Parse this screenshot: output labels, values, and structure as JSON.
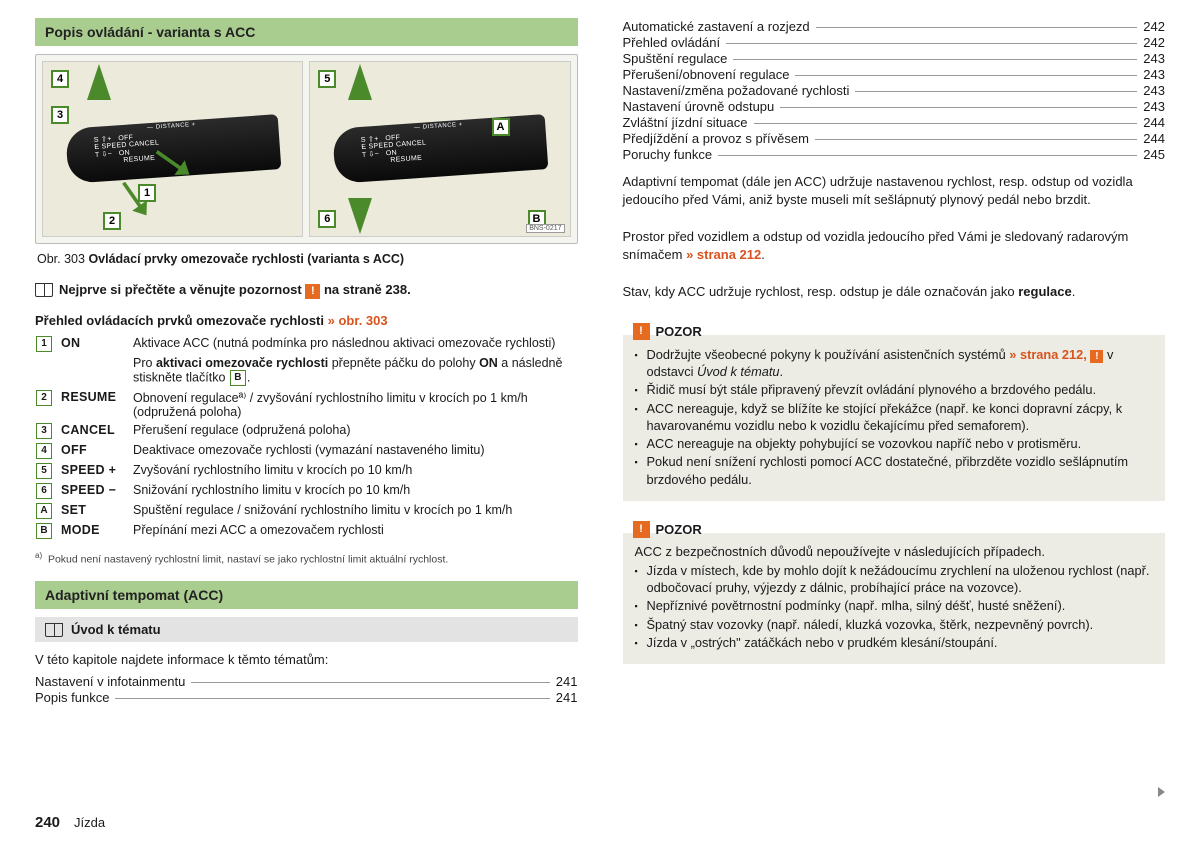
{
  "left": {
    "section_title": "Popis ovládání - varianta s ACC",
    "figure": {
      "lever_distance": "— DISTANCE +",
      "lever_lines_1": "S ⇧⇧+  OFF\nE SPEED CANCEL\nT ⇩⇩−  ON\n       RESUME",
      "code": "BNS-0217",
      "left_refs": {
        "r1": "1",
        "r2": "2",
        "r3": "3",
        "r4": "4"
      },
      "right_refs": {
        "r5": "5",
        "r6": "6",
        "rA": "A",
        "rB": "B"
      }
    },
    "caption_prefix": "Obr. 303 ",
    "caption_text": "Ovládací prvky omezovače rychlosti (varianta s ACC)",
    "read_first_a": "Nejprve si přečtěte a věnujte pozornost ",
    "read_first_b": " na straně 238.",
    "overview_heading": "Přehled ovládacích prvků omezovače rychlosti ",
    "overview_ref": "» obr. 303",
    "controls": [
      {
        "n": "1",
        "lbl": "ON",
        "txt": "Aktivace ACC (nutná podmínka pro následnou aktivaci omezovače rychlosti)"
      },
      {
        "n": "",
        "lbl": "",
        "txt_html": "Pro <b>aktivaci omezovače rychlosti</b> přepněte páčku do polohy <b>ON</b> a následně stiskněte tlačítko "
      },
      {
        "n": "2",
        "lbl": "RESUME",
        "txt": "Obnovení regulaceª⁾ / zvyšování rychlostního limitu v krocích po 1 km/h (odpružená poloha)"
      },
      {
        "n": "3",
        "lbl": "CANCEL",
        "txt": "Přerušení regulace (odpružená poloha)"
      },
      {
        "n": "4",
        "lbl": "OFF",
        "txt": "Deaktivace omezovače rychlosti (vymazání nastaveného limitu)"
      },
      {
        "n": "5",
        "lbl": "SPEED +",
        "txt": "Zvyšování rychlostního limitu v krocích po 10 km/h"
      },
      {
        "n": "6",
        "lbl": "SPEED −",
        "txt": "Snižování rychlostního limitu v krocích po 10 km/h"
      },
      {
        "n": "A",
        "lbl": "SET",
        "txt": "Spuštění regulace / snižování rychlostního limitu v krocích po 1 km/h"
      },
      {
        "n": "B",
        "lbl": "MODE",
        "txt": "Přepínání mezi ACC a omezovačem rychlosti"
      }
    ],
    "btn_B": "B",
    "footnote_marker": "a)",
    "footnote": "Pokud není nastavený rychlostní limit, nastaví se jako rychlostní limit aktuální rychlost.",
    "acc_header": "Adaptivní tempomat (ACC)",
    "intro_header": "Úvod k tématu",
    "toc_intro": "V této kapitole najdete informace k těmto tématům:",
    "toc_left": [
      {
        "label": "Nastavení v infotainmentu",
        "page": "241"
      },
      {
        "label": "Popis funkce",
        "page": "241"
      }
    ],
    "page_num": "240",
    "chapter": "Jízda"
  },
  "right": {
    "toc": [
      {
        "label": "Automatické zastavení a rozjezd",
        "page": "242"
      },
      {
        "label": "Přehled ovládání",
        "page": "242"
      },
      {
        "label": "Spuštění regulace",
        "page": "243"
      },
      {
        "label": "Přerušení/obnovení regulace",
        "page": "243"
      },
      {
        "label": "Nastavení/změna požadované rychlosti",
        "page": "243"
      },
      {
        "label": "Nastavení úrovně odstupu",
        "page": "243"
      },
      {
        "label": "Zvláštní jízdní situace",
        "page": "244"
      },
      {
        "label": "Předjíždění a provoz s přívěsem",
        "page": "244"
      },
      {
        "label": "Poruchy funkce",
        "page": "245"
      }
    ],
    "para1": "Adaptivní tempomat (dále jen ACC) udržuje nastavenou rychlost, resp. odstup od vozidla jedoucího před Vámi, aniž byste museli mít sešlápnutý plynový pedál nebo brzdit.",
    "para2_a": "Prostor před vozidlem a odstup od vozidla jedoucího před Vámi je sledovaný radarovým snímačem ",
    "para2_link": "» strana 212",
    "para2_b": ".",
    "para3_a": "Stav, kdy ACC udržuje rychlost, resp. odstup je dále označován jako ",
    "para3_bold": "regulace",
    "para3_b": ".",
    "pozor_title": "POZOR",
    "pozor1": {
      "line1_a": "Dodržujte všeobecné pokyny k používání asistenčních systémů ",
      "line1_link": "» strana 212, ",
      "line1_b": " v odstavci ",
      "line1_i": "Úvod k tématu",
      "line1_c": ".",
      "items": [
        "Řidič musí být stále připravený převzít ovládání plynového a brzdového pedálu.",
        "ACC nereaguje, když se blížíte ke stojící překážce (např. ke konci dopravní zácpy, k havarovanému vozidlu nebo k vozidlu čekajícímu před semaforem).",
        "ACC nereaguje na objekty pohybující se vozovkou napříč nebo v protisměru.",
        "Pokud není snížení rychlosti pomocí ACC dostatečné, přibrzděte vozidlo sešlápnutím brzdového pedálu."
      ]
    },
    "pozor2": {
      "lead": "ACC z bezpečnostních důvodů nepoužívejte v následujících případech.",
      "items": [
        "Jízda v místech, kde by mohlo dojít k nežádoucímu zrychlení na uloženou rychlost (např. odbočovací pruhy, výjezdy z dálnic, probíhající práce na vozovce).",
        "Nepříznivé povětrnostní podmínky (např. mlha, silný déšť, husté sněžení).",
        "Špatný stav vozovky (např. náledí, kluzká vozovka, štěrk, nezpevněný povrch).",
        "Jízda v „ostrých\" zatáčkách nebo v prudkém klesání/stoupání."
      ]
    }
  }
}
